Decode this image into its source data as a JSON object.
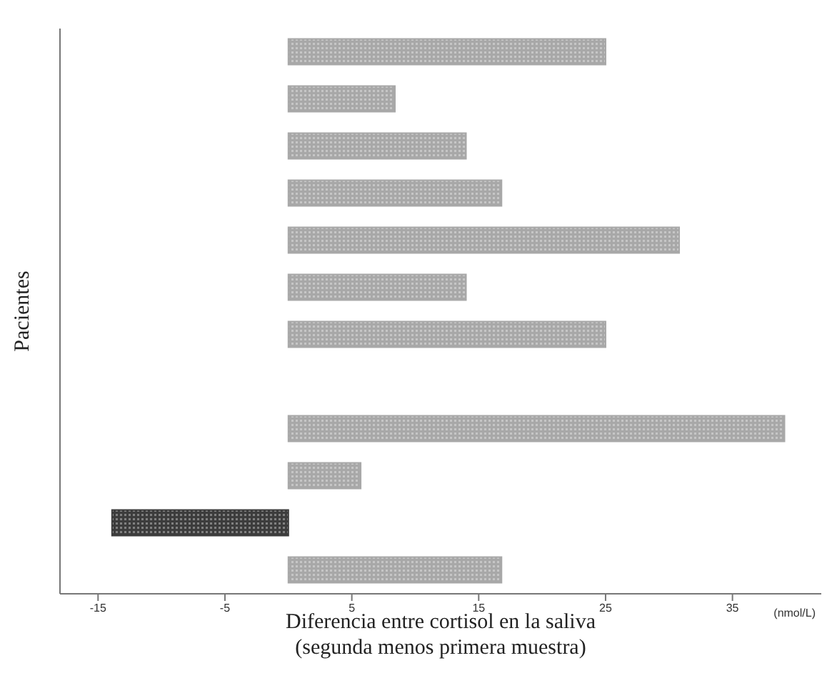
{
  "chart_data": {
    "type": "bar",
    "orientation": "horizontal",
    "xlabel": "Diferencia entre cortisol en la saliva\n(segunda menos primera muestra)",
    "ylabel": "Pacientes",
    "categories": [
      null,
      null,
      null,
      null,
      null,
      null,
      null,
      null,
      null,
      null,
      null,
      null
    ],
    "values": [
      25,
      8.4,
      14,
      16.8,
      30.8,
      14,
      25,
      0,
      39.1,
      5.7,
      -13.9,
      16.8
    ],
    "colors": [
      "#a8a8a8",
      "#a8a8a8",
      "#a8a8a8",
      "#a8a8a8",
      "#a8a8a8",
      "#a8a8a8",
      "#a8a8a8",
      "#a8a8a8",
      "#a8a8a8",
      "#a8a8a8",
      "#3c3c3c",
      "#a8a8a8"
    ],
    "xlim": [
      -18,
      42
    ],
    "xticks": [
      -15,
      -5,
      5,
      15,
      25,
      35
    ],
    "annotations": [
      "(nmol/L)"
    ]
  }
}
